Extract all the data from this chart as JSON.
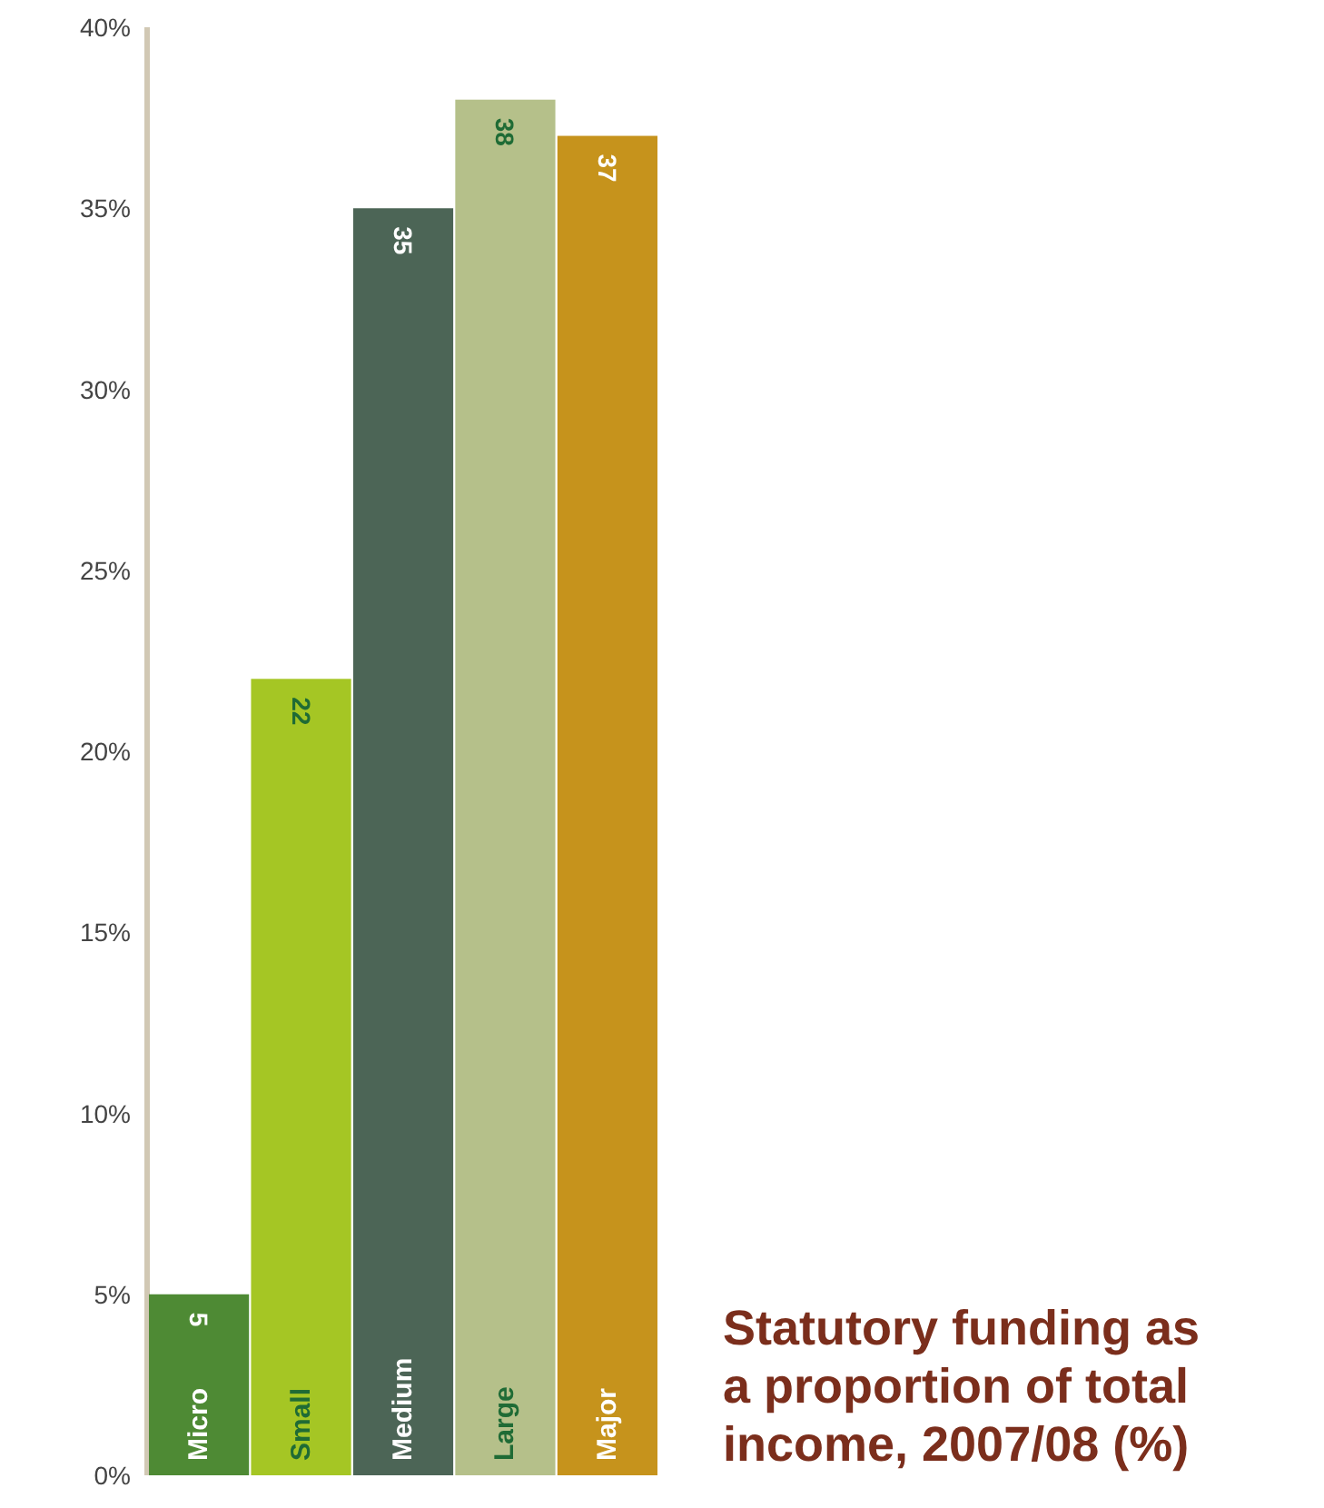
{
  "chart_data": {
    "type": "bar",
    "title": "Statutory funding as a proportion of total income, 2007/08 (%)",
    "categories": [
      "Micro",
      "Small",
      "Medium",
      "Large",
      "Major"
    ],
    "values": [
      5,
      22,
      35,
      38,
      37
    ],
    "colors": [
      "#4e8a34",
      "#a5c624",
      "#4c6556",
      "#b5c08a",
      "#c6931c"
    ],
    "ylim": [
      0,
      40
    ],
    "yticks": [
      {
        "value": 0,
        "label": "0%"
      },
      {
        "value": 5,
        "label": "5%"
      },
      {
        "value": 10,
        "label": "10%"
      },
      {
        "value": 15,
        "label": "15%"
      },
      {
        "value": 20,
        "label": "20%"
      },
      {
        "value": 25,
        "label": "25%"
      },
      {
        "value": 30,
        "label": "30%"
      },
      {
        "value": 35,
        "label": "35%"
      },
      {
        "value": 40,
        "label": "40%"
      }
    ],
    "data_labels": true,
    "grid": false
  }
}
